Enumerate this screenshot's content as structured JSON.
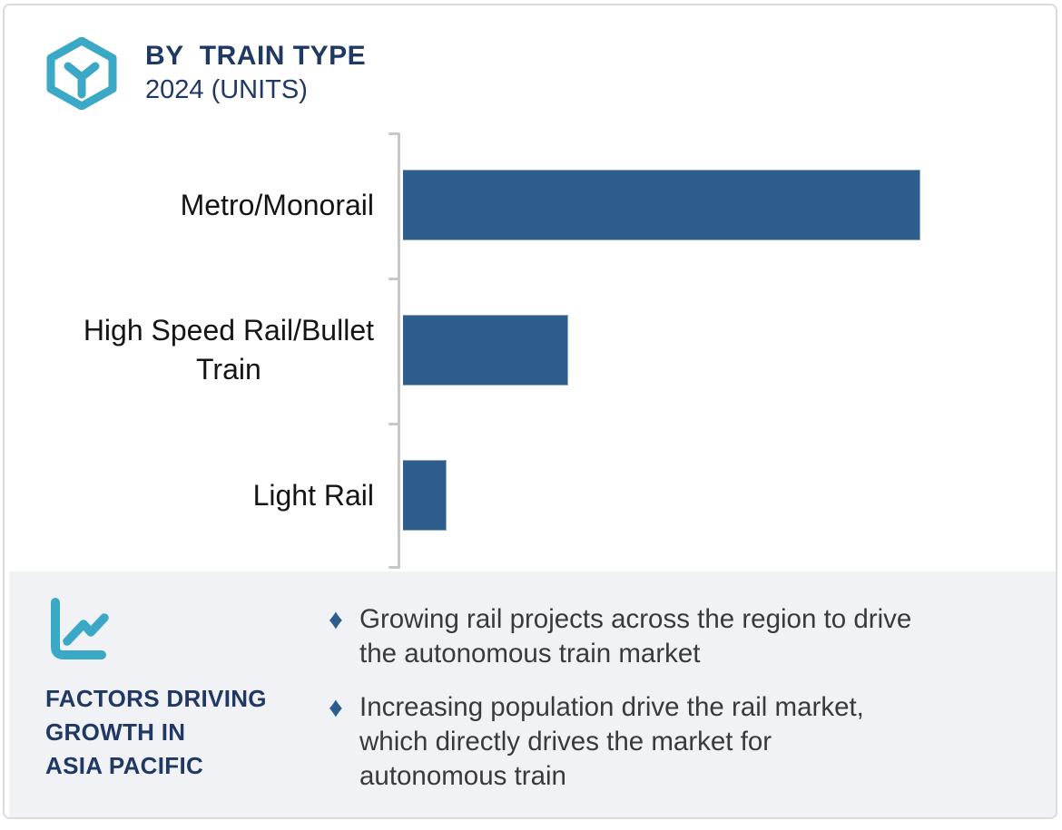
{
  "header": {
    "logo_icon": "hexagon-y-logo-icon",
    "title": "BY  TRAIN TYPE",
    "subtitle": "2024 (UNITS)"
  },
  "chart_data": {
    "type": "bar",
    "orientation": "horizontal",
    "title": "BY TRAIN TYPE",
    "subtitle": "2024 (UNITS)",
    "categories": [
      "Metro/Monorail",
      "High Speed Rail/Bullet Train",
      "Light Rail"
    ],
    "values_percent_of_max": [
      100,
      32,
      8.5
    ],
    "value_labels_shown": false,
    "value_axis_ticks_shown": false,
    "grid": false,
    "legend": "none",
    "bar_color": "#2d5d8c",
    "axis_color": "#c8c8ca"
  },
  "chart_display": {
    "labels": [
      "Metro/Monorail",
      "High Speed Rail/Bullet\nTrain",
      "Light Rail"
    ]
  },
  "footer": {
    "icon": "line-chart-icon",
    "heading": "FACTORS DRIVING\nGROWTH IN\nASIA PACIFIC",
    "bullet_marker": "♦",
    "bullets": [
      "Growing rail projects across the region to drive\nthe autonomous train market",
      "Increasing population drive the rail market,\nwhich directly drives the market for\nautonomous train"
    ]
  },
  "colors": {
    "navy_text": "#1f3864",
    "teal_icon": "#3ba9c6",
    "bar": "#2d5d8c",
    "footer_bg": "#f1f2f6",
    "body_text": "#3a3a3a",
    "card_border": "#d9dbe1"
  }
}
